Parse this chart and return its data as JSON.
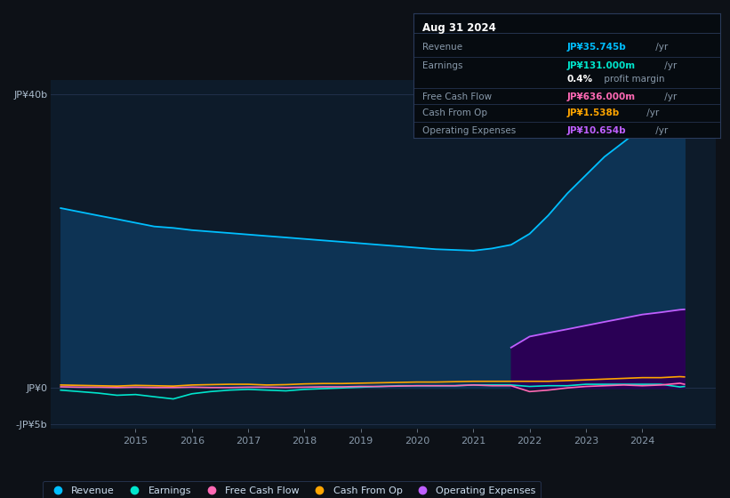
{
  "bg_color": "#0d1117",
  "plot_bg_color": "#0d1b2a",
  "grid_color": "#243450",
  "title_box": {
    "date": "Aug 31 2024",
    "rows": [
      {
        "label": "Revenue",
        "value": "JP¥35.745b",
        "suffix": " /yr",
        "value_color": "#00bfff"
      },
      {
        "label": "Earnings",
        "value": "JP¥131.000m",
        "suffix": " /yr",
        "value_color": "#00e5cc"
      },
      {
        "label": "",
        "value": "0.4%",
        "suffix": " profit margin",
        "value_color": "#ffffff"
      },
      {
        "label": "Free Cash Flow",
        "value": "JP¥636.000m",
        "suffix": " /yr",
        "value_color": "#ff69b4"
      },
      {
        "label": "Cash From Op",
        "value": "JP¥1.538b",
        "suffix": " /yr",
        "value_color": "#ffa500"
      },
      {
        "label": "Operating Expenses",
        "value": "JP¥10.654b",
        "suffix": " /yr",
        "value_color": "#bf5fff"
      }
    ]
  },
  "ylim": [
    -5.5,
    42
  ],
  "ytick_labels": [
    "JP¥40b",
    "JP¥0",
    "-JP¥5b"
  ],
  "ytick_values": [
    40,
    0,
    -5
  ],
  "xlim_start": 2013.5,
  "xlim_end": 2025.3,
  "xticks": [
    2015,
    2016,
    2017,
    2018,
    2019,
    2020,
    2021,
    2022,
    2023,
    2024
  ],
  "series": {
    "revenue": {
      "color": "#00bfff",
      "fill_color": "#0d3354",
      "label": "Revenue",
      "x": [
        2013.67,
        2014.0,
        2014.33,
        2014.67,
        2015.0,
        2015.33,
        2015.67,
        2016.0,
        2016.33,
        2016.67,
        2017.0,
        2017.33,
        2017.67,
        2018.0,
        2018.33,
        2018.67,
        2019.0,
        2019.33,
        2019.67,
        2020.0,
        2020.33,
        2020.67,
        2021.0,
        2021.33,
        2021.67,
        2022.0,
        2022.33,
        2022.67,
        2023.0,
        2023.33,
        2023.67,
        2024.0,
        2024.33,
        2024.67,
        2024.75
      ],
      "y": [
        24.5,
        24.0,
        23.5,
        23.0,
        22.5,
        22.0,
        21.8,
        21.5,
        21.3,
        21.1,
        20.9,
        20.7,
        20.5,
        20.3,
        20.1,
        19.9,
        19.7,
        19.5,
        19.3,
        19.1,
        18.9,
        18.8,
        18.7,
        19.0,
        19.5,
        21.0,
        23.5,
        26.5,
        29.0,
        31.5,
        33.5,
        35.5,
        37.0,
        35.745,
        36.0
      ]
    },
    "earnings": {
      "color": "#00e5cc",
      "label": "Earnings",
      "x": [
        2013.67,
        2014.0,
        2014.33,
        2014.67,
        2015.0,
        2015.33,
        2015.67,
        2016.0,
        2016.33,
        2016.67,
        2017.0,
        2017.33,
        2017.67,
        2018.0,
        2018.33,
        2018.67,
        2019.0,
        2019.33,
        2019.67,
        2020.0,
        2020.33,
        2020.67,
        2021.0,
        2021.33,
        2021.67,
        2022.0,
        2022.33,
        2022.67,
        2023.0,
        2023.33,
        2023.67,
        2024.0,
        2024.33,
        2024.67,
        2024.75
      ],
      "y": [
        -0.3,
        -0.5,
        -0.7,
        -1.0,
        -0.9,
        -1.2,
        -1.5,
        -0.8,
        -0.5,
        -0.3,
        -0.2,
        -0.3,
        -0.4,
        -0.2,
        -0.1,
        0.0,
        0.1,
        0.2,
        0.3,
        0.3,
        0.3,
        0.3,
        0.4,
        0.4,
        0.4,
        0.2,
        0.3,
        0.3,
        0.5,
        0.5,
        0.5,
        0.5,
        0.5,
        0.131,
        0.2
      ]
    },
    "free_cash_flow": {
      "color": "#ff69b4",
      "label": "Free Cash Flow",
      "x": [
        2013.67,
        2014.0,
        2014.33,
        2014.67,
        2015.0,
        2015.33,
        2015.67,
        2016.0,
        2016.33,
        2016.67,
        2017.0,
        2017.33,
        2017.67,
        2018.0,
        2018.33,
        2018.67,
        2019.0,
        2019.33,
        2019.67,
        2020.0,
        2020.33,
        2020.67,
        2021.0,
        2021.33,
        2021.67,
        2022.0,
        2022.33,
        2022.67,
        2023.0,
        2023.33,
        2023.67,
        2024.0,
        2024.33,
        2024.67,
        2024.75
      ],
      "y": [
        0.15,
        0.1,
        0.1,
        0.05,
        0.1,
        0.05,
        0.05,
        0.1,
        0.05,
        0.05,
        0.1,
        0.1,
        0.05,
        0.1,
        0.15,
        0.15,
        0.2,
        0.2,
        0.25,
        0.3,
        0.3,
        0.3,
        0.4,
        0.3,
        0.3,
        -0.5,
        -0.3,
        0.0,
        0.2,
        0.3,
        0.4,
        0.3,
        0.4,
        0.636,
        0.5
      ]
    },
    "cash_from_op": {
      "color": "#ffa500",
      "label": "Cash From Op",
      "x": [
        2013.67,
        2014.0,
        2014.33,
        2014.67,
        2015.0,
        2015.33,
        2015.67,
        2016.0,
        2016.33,
        2016.67,
        2017.0,
        2017.33,
        2017.67,
        2018.0,
        2018.33,
        2018.67,
        2019.0,
        2019.33,
        2019.67,
        2020.0,
        2020.33,
        2020.67,
        2021.0,
        2021.33,
        2021.67,
        2022.0,
        2022.33,
        2022.67,
        2023.0,
        2023.33,
        2023.67,
        2024.0,
        2024.33,
        2024.67,
        2024.75
      ],
      "y": [
        0.4,
        0.35,
        0.3,
        0.25,
        0.35,
        0.3,
        0.25,
        0.4,
        0.45,
        0.5,
        0.5,
        0.4,
        0.45,
        0.55,
        0.6,
        0.6,
        0.65,
        0.7,
        0.75,
        0.8,
        0.8,
        0.85,
        0.9,
        0.9,
        0.9,
        0.9,
        0.9,
        1.0,
        1.1,
        1.2,
        1.3,
        1.4,
        1.4,
        1.538,
        1.5
      ]
    },
    "operating_expenses": {
      "color": "#bf5fff",
      "fill_color": "#2a0055",
      "label": "Operating Expenses",
      "x": [
        2021.67,
        2022.0,
        2022.33,
        2022.67,
        2023.0,
        2023.33,
        2023.67,
        2024.0,
        2024.33,
        2024.67,
        2024.75
      ],
      "y": [
        5.5,
        7.0,
        7.5,
        8.0,
        8.5,
        9.0,
        9.5,
        10.0,
        10.3,
        10.654,
        10.7
      ]
    }
  },
  "legend": [
    {
      "label": "Revenue",
      "color": "#00bfff"
    },
    {
      "label": "Earnings",
      "color": "#00e5cc"
    },
    {
      "label": "Free Cash Flow",
      "color": "#ff69b4"
    },
    {
      "label": "Cash From Op",
      "color": "#ffa500"
    },
    {
      "label": "Operating Expenses",
      "color": "#bf5fff"
    }
  ]
}
